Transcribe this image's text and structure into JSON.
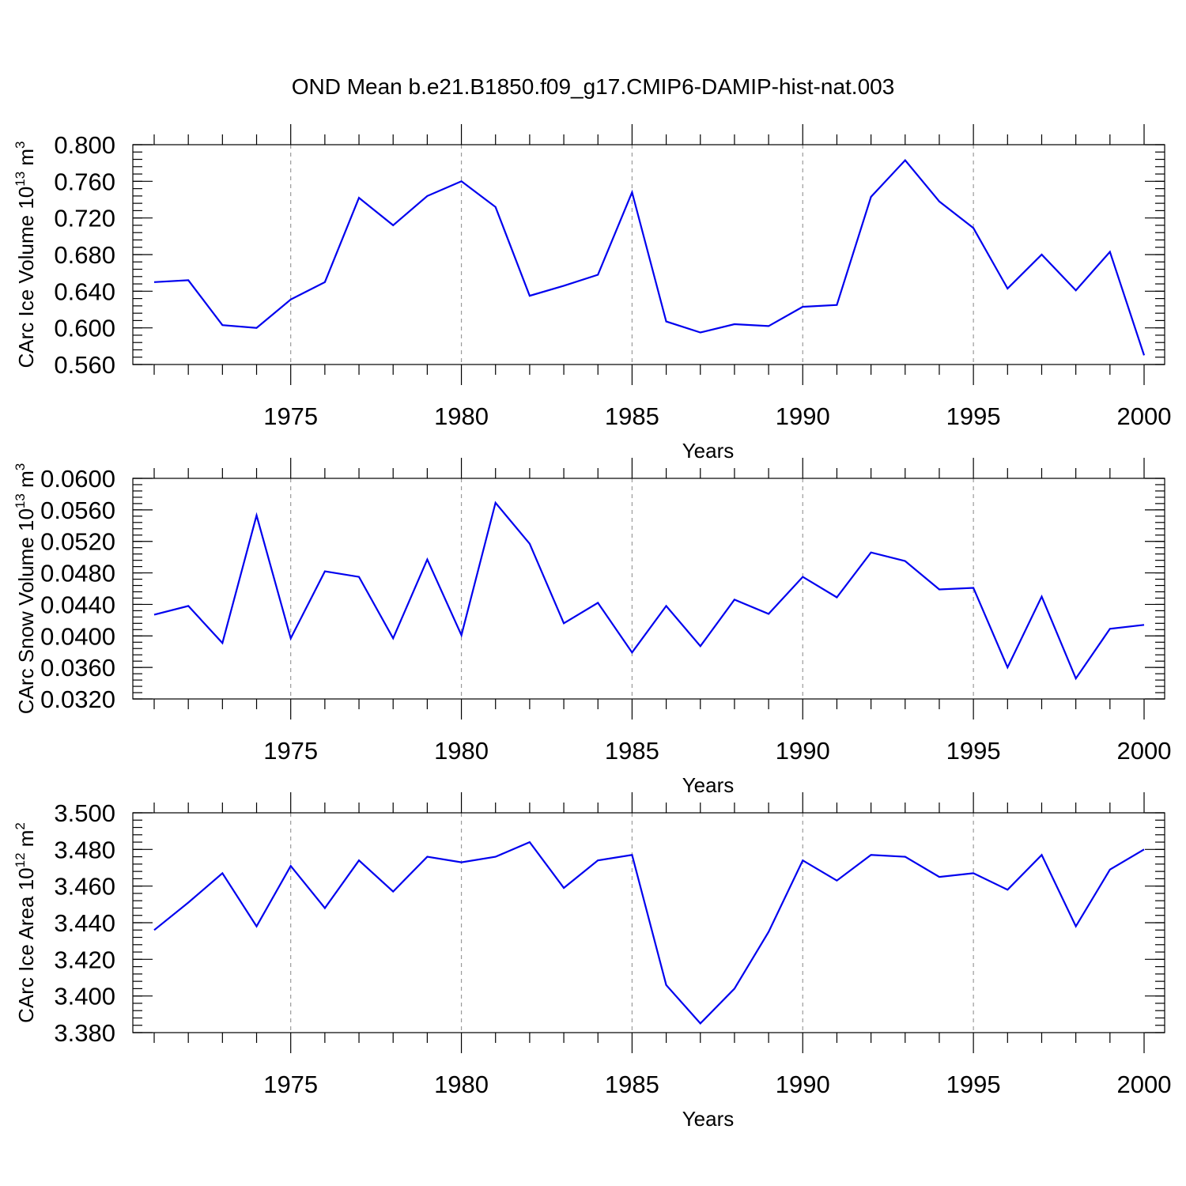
{
  "title": "OND Mean b.e21.B1850.f09_g17.CMIP6-DAMIP-hist-nat.003",
  "chart_data": [
    {
      "type": "line",
      "ylabel": "CArc Ice Volume 10",
      "ylabel_sup": "13",
      "ylabel_unit": " m",
      "ylabel_unit_sup": "3",
      "xlabel": "Years",
      "xlim": [
        1971,
        2000
      ],
      "ylim": [
        0.56,
        0.8
      ],
      "y_ticks": [
        "0.560",
        "0.600",
        "0.640",
        "0.680",
        "0.720",
        "0.760",
        "0.800"
      ],
      "y_minor_step": 0.008,
      "x_ticks": [
        "1975",
        "1980",
        "1985",
        "1990",
        "1995",
        "2000"
      ],
      "grid": "x-major dashed",
      "color": "#0000ee",
      "x": [
        1971,
        1972,
        1973,
        1974,
        1975,
        1976,
        1977,
        1978,
        1979,
        1980,
        1981,
        1982,
        1983,
        1984,
        1985,
        1986,
        1987,
        1988,
        1989,
        1990,
        1991,
        1992,
        1993,
        1994,
        1995,
        1996,
        1997,
        1998,
        1999,
        2000
      ],
      "values": [
        0.65,
        0.652,
        0.603,
        0.6,
        0.631,
        0.65,
        0.742,
        0.712,
        0.744,
        0.76,
        0.732,
        0.635,
        0.646,
        0.658,
        0.748,
        0.607,
        0.595,
        0.604,
        0.602,
        0.623,
        0.625,
        0.743,
        0.783,
        0.738,
        0.709,
        0.643,
        0.68,
        0.641,
        0.683,
        0.57
      ]
    },
    {
      "type": "line",
      "ylabel": "CArc Snow Volume 10",
      "ylabel_sup": "13",
      "ylabel_unit": " m",
      "ylabel_unit_sup": "3",
      "xlabel": "Years",
      "xlim": [
        1971,
        2000
      ],
      "ylim": [
        0.032,
        0.06
      ],
      "y_ticks": [
        "0.0320",
        "0.0360",
        "0.0400",
        "0.0440",
        "0.0480",
        "0.0520",
        "0.0560",
        "0.0600"
      ],
      "y_minor_step": 0.0008,
      "x_ticks": [
        "1975",
        "1980",
        "1985",
        "1990",
        "1995",
        "2000"
      ],
      "grid": "x-major dashed",
      "color": "#0000ee",
      "x": [
        1971,
        1972,
        1973,
        1974,
        1975,
        1976,
        1977,
        1978,
        1979,
        1980,
        1981,
        1982,
        1983,
        1984,
        1985,
        1986,
        1987,
        1988,
        1989,
        1990,
        1991,
        1992,
        1993,
        1994,
        1995,
        1996,
        1997,
        1998,
        1999,
        2000
      ],
      "values": [
        0.0427,
        0.0438,
        0.0391,
        0.0553,
        0.0397,
        0.0482,
        0.0475,
        0.0397,
        0.0497,
        0.0401,
        0.0569,
        0.0517,
        0.0416,
        0.0442,
        0.0379,
        0.0438,
        0.0387,
        0.0446,
        0.0428,
        0.0475,
        0.0449,
        0.0506,
        0.0495,
        0.0459,
        0.0461,
        0.036,
        0.045,
        0.0346,
        0.0409,
        0.0414
      ]
    },
    {
      "type": "line",
      "ylabel": "CArc Ice Area 10",
      "ylabel_sup": "12",
      "ylabel_unit": " m",
      "ylabel_unit_sup": "2",
      "xlabel": "Years",
      "xlim": [
        1971,
        2000
      ],
      "ylim": [
        3.38,
        3.5
      ],
      "y_ticks": [
        "3.380",
        "3.400",
        "3.420",
        "3.440",
        "3.460",
        "3.480",
        "3.500"
      ],
      "y_minor_step": 0.004,
      "x_ticks": [
        "1975",
        "1980",
        "1985",
        "1990",
        "1995",
        "2000"
      ],
      "grid": "x-major dashed",
      "color": "#0000ee",
      "x": [
        1971,
        1972,
        1973,
        1974,
        1975,
        1976,
        1977,
        1978,
        1979,
        1980,
        1981,
        1982,
        1983,
        1984,
        1985,
        1986,
        1987,
        1988,
        1989,
        1990,
        1991,
        1992,
        1993,
        1994,
        1995,
        1996,
        1997,
        1998,
        1999,
        2000
      ],
      "values": [
        3.436,
        3.451,
        3.467,
        3.438,
        3.471,
        3.448,
        3.474,
        3.457,
        3.476,
        3.473,
        3.476,
        3.484,
        3.459,
        3.474,
        3.477,
        3.406,
        3.385,
        3.404,
        3.435,
        3.474,
        3.463,
        3.477,
        3.476,
        3.465,
        3.467,
        3.458,
        3.477,
        3.438,
        3.469,
        3.48
      ]
    }
  ]
}
